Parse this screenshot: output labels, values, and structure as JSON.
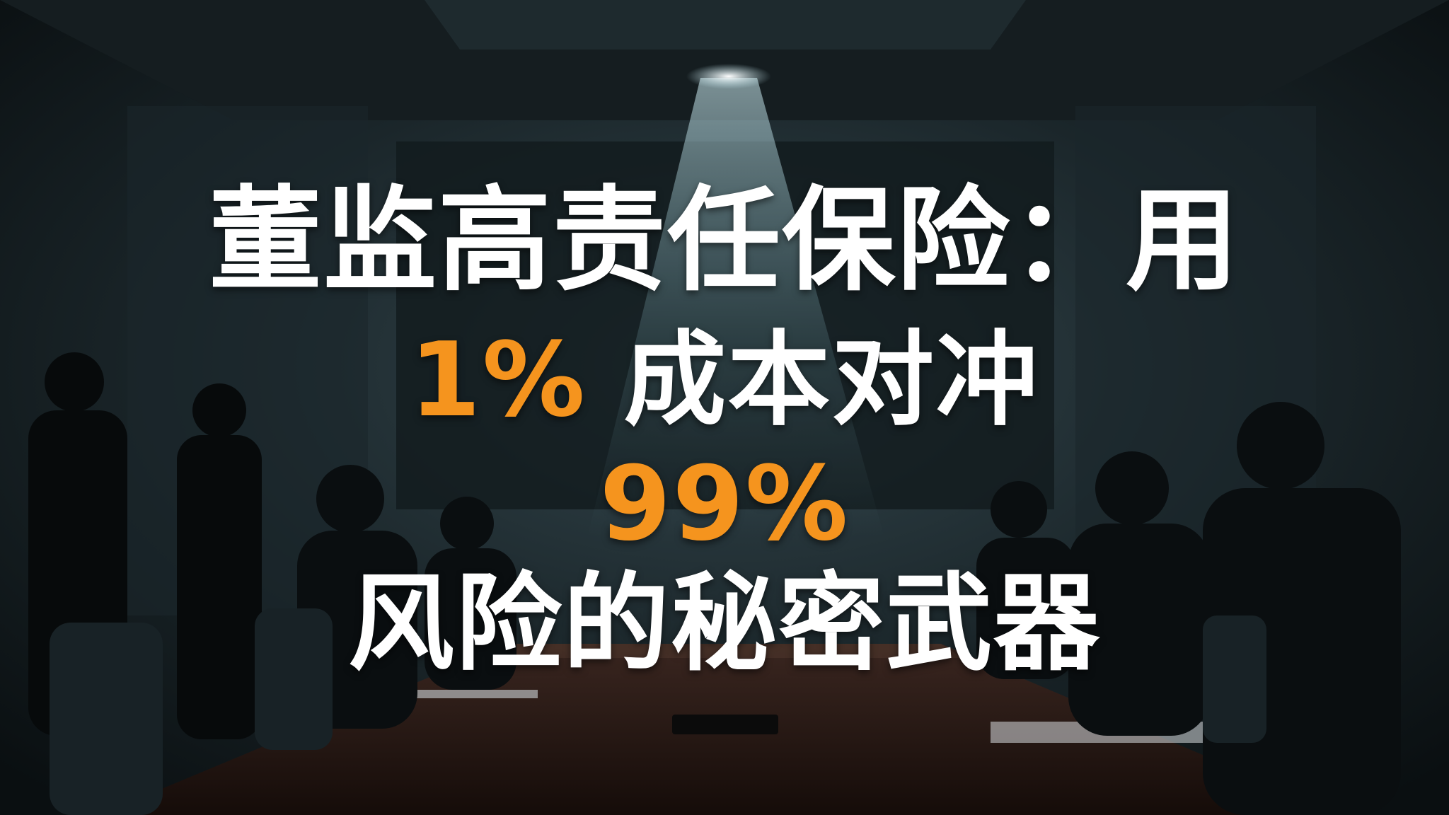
{
  "headline": {
    "line1": "董监高责任保险：用",
    "line2_highlight": "1%",
    "line2_rest": " 成本对冲",
    "line3_highlight": "99%",
    "line4": "风险的秘密武器"
  },
  "colors": {
    "text": "#ffffff",
    "highlight": "#f5941e",
    "background": "#0e1417"
  },
  "scene": {
    "subject": "dark boardroom meeting under a single spotlight"
  }
}
